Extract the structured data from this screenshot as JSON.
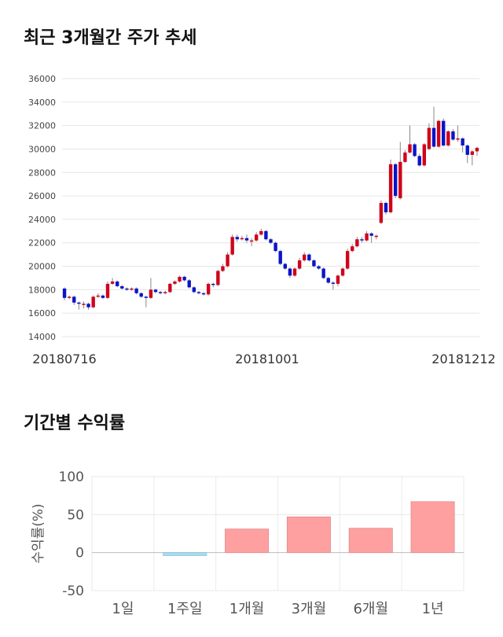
{
  "charts": {
    "price": {
      "title": "최근 3개월간 주가 추세",
      "x_ticks": [
        "20180716",
        "20181001",
        "20181212"
      ],
      "y_ticks": [
        "36000",
        "34000",
        "32000",
        "30000",
        "28000",
        "26000",
        "24000",
        "22000",
        "20000",
        "18000",
        "16000",
        "14000"
      ]
    },
    "returns": {
      "title": "기간별 수익률",
      "ylabel": "수익률(%)",
      "y_ticks": [
        "100",
        "50",
        "0",
        "-50"
      ]
    }
  },
  "colors": {
    "up": "#d0021b",
    "down": "#0a14c8",
    "pos_bar": "#ffa0a0",
    "neg_bar": "#a8dcee"
  },
  "chart_data": [
    {
      "type": "candlestick",
      "title": "최근 3개월간 주가 추세",
      "ylim": [
        14000,
        36000
      ],
      "x_ticks": [
        "20180716",
        "20181001",
        "20181212"
      ],
      "candles": [
        [
          18100,
          17300,
          18200,
          17100
        ],
        [
          17300,
          17400,
          17500,
          17200
        ],
        [
          17400,
          16900,
          17500,
          16700
        ],
        [
          16900,
          16850,
          17000,
          16300
        ],
        [
          16800,
          16800,
          17000,
          16400
        ],
        [
          16800,
          16500,
          16900,
          16300
        ],
        [
          16500,
          17400,
          17500,
          16400
        ],
        [
          17400,
          17500,
          17700,
          17300
        ],
        [
          17500,
          17300,
          17600,
          17200
        ],
        [
          17300,
          18500,
          18700,
          17200
        ],
        [
          18500,
          18700,
          19000,
          18400
        ],
        [
          18700,
          18300,
          18800,
          18200
        ],
        [
          18300,
          18100,
          18400,
          18000
        ],
        [
          18100,
          18000,
          18200,
          17900
        ],
        [
          18000,
          18100,
          18200,
          17900
        ],
        [
          18100,
          17700,
          18200,
          17600
        ],
        [
          17700,
          17400,
          17800,
          17300
        ],
        [
          17400,
          17300,
          17500,
          16500
        ],
        [
          17300,
          18000,
          19000,
          17200
        ],
        [
          18000,
          17800,
          18100,
          17700
        ],
        [
          17800,
          17700,
          17900,
          17600
        ],
        [
          17700,
          17800,
          17900,
          17600
        ],
        [
          17800,
          18500,
          18600,
          17700
        ],
        [
          18500,
          18700,
          18800,
          18400
        ],
        [
          18700,
          19100,
          19200,
          18600
        ],
        [
          19100,
          18800,
          19200,
          18700
        ],
        [
          18800,
          18200,
          18900,
          18100
        ],
        [
          18200,
          17800,
          18300,
          17700
        ],
        [
          17800,
          17700,
          17900,
          17600
        ],
        [
          17700,
          17600,
          17800,
          17500
        ],
        [
          17600,
          18500,
          18600,
          17500
        ],
        [
          18500,
          18400,
          18600,
          18200
        ],
        [
          18400,
          19600,
          19700,
          18300
        ],
        [
          19600,
          20000,
          20200,
          19500
        ],
        [
          20000,
          21000,
          21200,
          19900
        ],
        [
          21000,
          22500,
          22700,
          20900
        ],
        [
          22500,
          22300,
          22700,
          22100
        ],
        [
          22300,
          22400,
          22600,
          22200
        ],
        [
          22400,
          22200,
          22700,
          22000
        ],
        [
          22200,
          22200,
          22400,
          21700
        ],
        [
          22200,
          22700,
          22900,
          22100
        ],
        [
          22700,
          23000,
          23200,
          22600
        ],
        [
          23000,
          22300,
          23100,
          22200
        ],
        [
          22300,
          22000,
          22400,
          21900
        ],
        [
          22000,
          21300,
          22100,
          21200
        ],
        [
          21300,
          20200,
          21400,
          20100
        ],
        [
          20200,
          19800,
          20300,
          19700
        ],
        [
          19800,
          19200,
          19900,
          19000
        ],
        [
          19200,
          19800,
          19900,
          19100
        ],
        [
          19800,
          20500,
          20700,
          19700
        ],
        [
          20500,
          21000,
          21200,
          20400
        ],
        [
          21000,
          20500,
          21100,
          20400
        ],
        [
          20500,
          20000,
          20600,
          19900
        ],
        [
          20000,
          19800,
          20100,
          19700
        ],
        [
          19800,
          19000,
          19900,
          18900
        ],
        [
          19000,
          18600,
          19100,
          18500
        ],
        [
          18600,
          18500,
          18700,
          18000
        ],
        [
          18500,
          19200,
          19300,
          18300
        ],
        [
          19200,
          19800,
          19900,
          19100
        ],
        [
          19800,
          21300,
          21500,
          19700
        ],
        [
          21300,
          21700,
          21900,
          21200
        ],
        [
          21700,
          22300,
          22500,
          21600
        ],
        [
          22300,
          22200,
          22500,
          22000
        ],
        [
          22200,
          22800,
          23000,
          22100
        ],
        [
          22800,
          22600,
          22900,
          22000
        ],
        [
          22600,
          22600,
          22700,
          22300
        ],
        [
          23700,
          25400,
          25600,
          23600
        ],
        [
          25400,
          24600,
          25500,
          24400
        ],
        [
          24600,
          28700,
          29100,
          24500
        ],
        [
          28700,
          26000,
          28800,
          25800
        ],
        [
          25800,
          28900,
          30600,
          25700
        ],
        [
          28900,
          29700,
          29900,
          28800
        ],
        [
          29700,
          30400,
          32000,
          29600
        ],
        [
          30400,
          29400,
          30500,
          29300
        ],
        [
          29400,
          28600,
          29600,
          28500
        ],
        [
          28600,
          30400,
          30500,
          28500
        ],
        [
          30000,
          31800,
          32200,
          29900
        ],
        [
          31800,
          30200,
          33600,
          30100
        ],
        [
          30200,
          32400,
          32500,
          30100
        ],
        [
          32400,
          30300,
          32600,
          30200
        ],
        [
          30300,
          31500,
          31600,
          30200
        ],
        [
          31500,
          30800,
          31700,
          30700
        ],
        [
          30800,
          30900,
          32000,
          30600
        ],
        [
          30900,
          30300,
          31000,
          29700
        ],
        [
          30300,
          29500,
          30400,
          28800
        ],
        [
          29500,
          29800,
          29900,
          28600
        ],
        [
          29800,
          30100,
          30200,
          29400
        ]
      ]
    },
    {
      "type": "bar",
      "title": "기간별 수익률",
      "ylabel": "수익률(%)",
      "ylim": [
        -50,
        100
      ],
      "categories": [
        "1일",
        "1주일",
        "1개월",
        "3개월",
        "6개월",
        "1년"
      ],
      "values": [
        0,
        -4,
        31,
        47,
        32,
        67
      ]
    }
  ]
}
